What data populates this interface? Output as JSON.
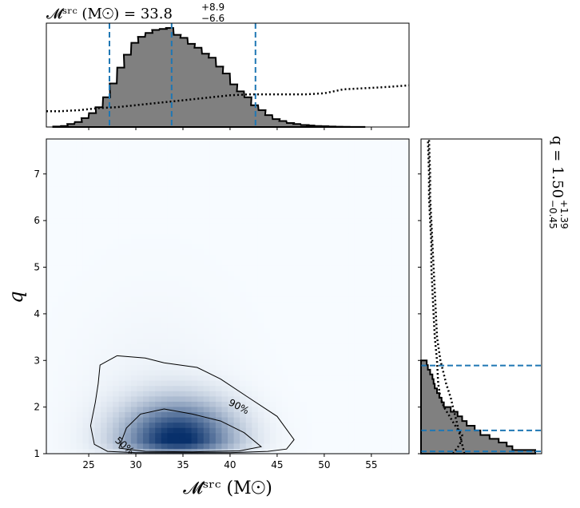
{
  "chart_data": {
    "type": "corner-plot",
    "top_title": {
      "main": "𝓜ˢʳᶜ (M☉) = 33.8",
      "sup": "+8.9",
      "sub": "−6.6"
    },
    "right_title": {
      "main": "q = 1.50",
      "sup": "+1.39",
      "sub": "−0.45"
    },
    "xlabel": "𝓜ˢʳᶜ (M☉)",
    "ylabel": "q",
    "xlim": [
      20.5,
      59
    ],
    "ylim": [
      1,
      7.75
    ],
    "xticks": [
      "25",
      "30",
      "35",
      "40",
      "45",
      "50",
      "55"
    ],
    "yticks": [
      "1",
      "2",
      "3",
      "4",
      "5",
      "6",
      "7"
    ],
    "contour_labels": [
      "90%",
      "50%"
    ],
    "colors": {
      "hist_fill": "#808080",
      "quantile": "#1f77b4",
      "density": "#08306b"
    },
    "mchirp_quantiles": [
      27.2,
      33.8,
      42.7
    ],
    "q_quantiles": [
      1.05,
      1.5,
      2.89
    ],
    "mchirp_hist": {
      "bin_width": 0.75,
      "centers": [
        21.6,
        22.4,
        23.1,
        23.9,
        24.6,
        25.4,
        26.1,
        26.9,
        27.6,
        28.4,
        29.1,
        29.9,
        30.6,
        31.4,
        32.1,
        32.9,
        33.6,
        34.4,
        35.1,
        35.9,
        36.6,
        37.4,
        38.1,
        38.9,
        39.6,
        40.4,
        41.1,
        41.9,
        42.6,
        43.4,
        44.1,
        44.9,
        45.6,
        46.4,
        47.1,
        47.9,
        48.6,
        49.4,
        50.1,
        50.9,
        51.6,
        52.4,
        53.1,
        53.9
      ],
      "density": [
        0.005,
        0.01,
        0.03,
        0.05,
        0.09,
        0.14,
        0.2,
        0.3,
        0.44,
        0.6,
        0.73,
        0.85,
        0.91,
        0.95,
        0.98,
        0.99,
        1.0,
        0.93,
        0.9,
        0.84,
        0.8,
        0.74,
        0.7,
        0.61,
        0.54,
        0.43,
        0.36,
        0.3,
        0.22,
        0.17,
        0.12,
        0.08,
        0.06,
        0.04,
        0.03,
        0.02,
        0.015,
        0.01,
        0.008,
        0.005,
        0.003,
        0.002,
        0.001,
        0.001
      ]
    },
    "mchirp_prior": {
      "x": [
        20.5,
        22,
        24,
        26,
        28,
        30,
        32,
        34,
        36,
        38,
        40,
        42,
        44,
        46,
        48,
        50,
        52,
        54,
        56,
        59
      ],
      "density": [
        0.16,
        0.16,
        0.17,
        0.19,
        0.2,
        0.22,
        0.24,
        0.26,
        0.28,
        0.3,
        0.32,
        0.33,
        0.33,
        0.33,
        0.33,
        0.34,
        0.38,
        0.39,
        0.4,
        0.42
      ]
    },
    "q_hist": {
      "bin_edges": [
        1.0,
        1.08,
        1.16,
        1.24,
        1.32,
        1.4,
        1.5,
        1.6,
        1.7,
        1.8,
        1.9,
        2.0,
        2.1,
        2.2,
        2.3,
        2.4,
        2.5,
        2.6,
        2.7,
        2.8,
        2.9,
        3.0
      ],
      "density": [
        1.0,
        0.8,
        0.75,
        0.68,
        0.6,
        0.52,
        0.47,
        0.4,
        0.36,
        0.32,
        0.26,
        0.2,
        0.18,
        0.16,
        0.14,
        0.12,
        0.11,
        0.1,
        0.08,
        0.06,
        0.05
      ]
    },
    "q_prior": {
      "q": [
        1.0,
        1.2,
        1.4,
        1.6,
        1.8,
        2.0,
        2.2,
        2.5,
        3.0,
        3.5,
        4.0,
        4.5,
        5.0,
        5.5,
        6.0,
        6.5,
        7.0,
        7.75
      ],
      "density_dotted_a": [
        0.38,
        0.36,
        0.34,
        0.32,
        0.3,
        0.28,
        0.26,
        0.22,
        0.17,
        0.14,
        0.13,
        0.12,
        0.11,
        0.1,
        0.09,
        0.08,
        0.08,
        0.07
      ],
      "density_dotted_b": [
        0.28,
        0.34,
        0.36,
        0.3,
        0.25,
        0.2,
        0.17,
        0.15,
        0.14,
        0.12,
        0.11,
        0.1,
        0.09,
        0.09,
        0.08,
        0.07,
        0.07,
        0.06
      ]
    },
    "density_peak": {
      "mchirp": 34.5,
      "q": 1.3,
      "sigma_mchirp": 4.0,
      "sigma_q_low": 0.2,
      "sigma_q_high": 0.55
    },
    "contour_90": [
      [
        28,
        3.1
      ],
      [
        31,
        3.05
      ],
      [
        33,
        2.95
      ],
      [
        36.5,
        2.85
      ],
      [
        39,
        2.6
      ],
      [
        42,
        2.2
      ],
      [
        45,
        1.8
      ],
      [
        46.8,
        1.3
      ],
      [
        46,
        1.1
      ],
      [
        44,
        1.05
      ],
      [
        40,
        1.02
      ],
      [
        35,
        1.02
      ],
      [
        30,
        1.02
      ],
      [
        27,
        1.05
      ],
      [
        25.6,
        1.2
      ],
      [
        25.2,
        1.6
      ],
      [
        25.7,
        2.1
      ],
      [
        26,
        2.5
      ],
      [
        26.2,
        2.9
      ],
      [
        28,
        3.1
      ]
    ],
    "contour_50": [
      [
        28.2,
        1.12
      ],
      [
        29,
        1.55
      ],
      [
        30.5,
        1.85
      ],
      [
        33,
        1.96
      ],
      [
        36,
        1.85
      ],
      [
        39,
        1.7
      ],
      [
        41.5,
        1.45
      ],
      [
        43.3,
        1.15
      ],
      [
        41,
        1.06
      ],
      [
        36,
        1.04
      ],
      [
        31,
        1.05
      ],
      [
        28.2,
        1.12
      ]
    ]
  }
}
